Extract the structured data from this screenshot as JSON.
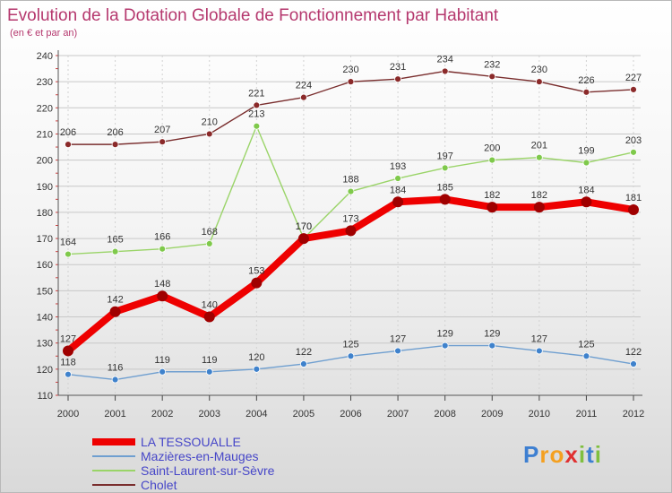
{
  "chart_data": {
    "type": "line",
    "title": "Evolution de la Dotation Globale de Fonctionnement par Habitant",
    "subtitle": "(en € et par an)",
    "xlabel": "",
    "ylabel": "",
    "x": [
      "2000",
      "2001",
      "2002",
      "2003",
      "2004",
      "2005",
      "2006",
      "2007",
      "2008",
      "2009",
      "2010",
      "2011",
      "2012"
    ],
    "ylim": [
      110,
      240
    ],
    "yticks": [
      110,
      120,
      130,
      140,
      150,
      160,
      170,
      180,
      190,
      200,
      210,
      220,
      230,
      240
    ],
    "grid": true,
    "legend_position": "bottom-left",
    "series": [
      {
        "name": "Cholet",
        "color": "#7a2e2e",
        "marker": "#8b2a2a",
        "values": [
          206,
          206,
          207,
          210,
          221,
          224,
          230,
          231,
          234,
          232,
          230,
          226,
          227
        ]
      },
      {
        "name": "Saint-Laurent-sur-Sèvre",
        "color": "#9ad468",
        "marker": "#7fc94b",
        "values": [
          164,
          165,
          166,
          168,
          213,
          170,
          188,
          193,
          197,
          200,
          201,
          199,
          203
        ]
      },
      {
        "name": "LA TESSOUALLE",
        "color": "#ee0000",
        "marker": "#a00000",
        "bold": true,
        "values": [
          127,
          142,
          148,
          140,
          153,
          170,
          173,
          184,
          185,
          182,
          182,
          184,
          181
        ]
      },
      {
        "name": "Mazières-en-Mauges",
        "color": "#6f9fd0",
        "marker": "#3f82cc",
        "values": [
          118,
          116,
          119,
          119,
          120,
          122,
          125,
          127,
          129,
          129,
          127,
          125,
          122
        ]
      }
    ],
    "legend_order": [
      "LA TESSOUALLE",
      "Mazières-en-Mauges",
      "Saint-Laurent-sur-Sèvre",
      "Cholet"
    ]
  },
  "logo": {
    "letters": [
      "P",
      "r",
      "o",
      "x",
      "i",
      "t",
      "i"
    ],
    "colors": [
      "#3d7fd1",
      "#f4a020",
      "#f4a020",
      "#e03030",
      "#7fbf3f",
      "#3d7fd1",
      "#7fbf3f"
    ]
  }
}
